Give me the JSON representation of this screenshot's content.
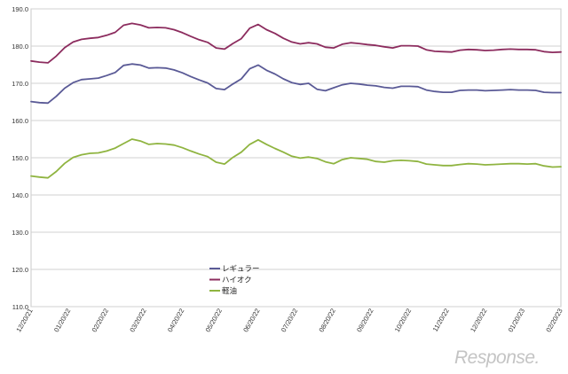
{
  "chart_data": {
    "type": "line",
    "title": "",
    "xlabel": "",
    "ylabel": "",
    "ylim": [
      110,
      190
    ],
    "y_ticks": [
      "110.0",
      "120.0",
      "130.0",
      "140.0",
      "150.0",
      "160.0",
      "170.0",
      "180.0",
      "190.0"
    ],
    "x_ticks": [
      "12/20/21",
      "01/20/22",
      "02/20/22",
      "03/20/22",
      "04/20/22",
      "05/20/22",
      "06/20/22",
      "07/20/22",
      "08/20/22",
      "09/20/22",
      "10/20/22",
      "11/20/22",
      "12/20/22",
      "01/20/23",
      "02/20/23"
    ],
    "grid": "horizontal",
    "legend_position": "center-bottom",
    "series": [
      {
        "name": "レギュラー",
        "color": "#5a5a96",
        "values": [
          165.1,
          164.8,
          164.7,
          166.5,
          168.7,
          170.2,
          171.0,
          171.2,
          171.4,
          172.1,
          172.9,
          174.8,
          175.2,
          174.9,
          174.1,
          174.2,
          174.1,
          173.6,
          172.8,
          171.8,
          170.9,
          170.1,
          168.6,
          168.3,
          169.8,
          171.2,
          173.9,
          174.9,
          173.5,
          172.5,
          171.2,
          170.2,
          169.7,
          170.0,
          168.4,
          168.0,
          168.8,
          169.6,
          170.0,
          169.8,
          169.5,
          169.3,
          168.9,
          168.7,
          169.2,
          169.2,
          169.1,
          168.2,
          167.8,
          167.6,
          167.6,
          168.1,
          168.2,
          168.2,
          168.0,
          168.1,
          168.2,
          168.3,
          168.2,
          168.2,
          168.1,
          167.6,
          167.5,
          167.5
        ]
      },
      {
        "name": "ハイオク",
        "color": "#8c2c5e",
        "values": [
          176.0,
          175.7,
          175.5,
          177.3,
          179.6,
          181.1,
          181.8,
          182.1,
          182.3,
          182.9,
          183.7,
          185.6,
          186.1,
          185.7,
          184.9,
          185.0,
          184.9,
          184.4,
          183.6,
          182.6,
          181.7,
          181.0,
          179.5,
          179.2,
          180.7,
          182.0,
          184.8,
          185.8,
          184.4,
          183.4,
          182.1,
          181.1,
          180.6,
          180.9,
          180.6,
          179.7,
          179.5,
          180.5,
          180.9,
          180.7,
          180.4,
          180.2,
          179.8,
          179.5,
          180.1,
          180.1,
          180.0,
          179.0,
          178.6,
          178.5,
          178.4,
          178.9,
          179.1,
          179.0,
          178.8,
          178.9,
          179.1,
          179.2,
          179.1,
          179.1,
          179.0,
          178.5,
          178.3,
          178.4
        ]
      },
      {
        "name": "軽油",
        "color": "#8fb440",
        "values": [
          145.1,
          144.8,
          144.6,
          146.3,
          148.5,
          150.1,
          150.8,
          151.2,
          151.3,
          151.8,
          152.6,
          153.8,
          155.0,
          154.5,
          153.6,
          153.8,
          153.7,
          153.4,
          152.7,
          151.8,
          151.0,
          150.3,
          148.8,
          148.3,
          150.1,
          151.5,
          153.6,
          154.8,
          153.6,
          152.5,
          151.5,
          150.4,
          149.9,
          150.2,
          149.8,
          148.9,
          148.4,
          149.5,
          150.0,
          149.8,
          149.6,
          149.0,
          148.8,
          149.2,
          149.3,
          149.2,
          149.0,
          148.3,
          148.1,
          147.9,
          147.9,
          148.2,
          148.4,
          148.3,
          148.1,
          148.2,
          148.3,
          148.4,
          148.4,
          148.3,
          148.4,
          147.8,
          147.5,
          147.6
        ]
      }
    ]
  },
  "watermark": {
    "text": "Response."
  }
}
